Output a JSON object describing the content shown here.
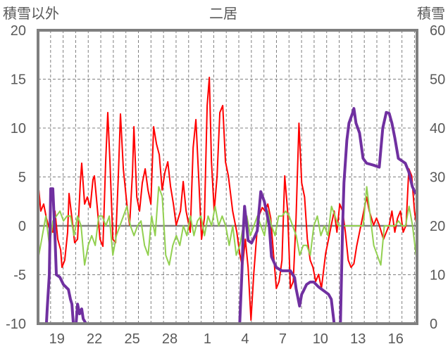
{
  "chart_data": {
    "type": "line",
    "title": "二居",
    "ylabel_left": "積雪以外",
    "ylabel_right": "積雪",
    "xlabel": "",
    "xlim": [
      0,
      30.2
    ],
    "ylim_left": [
      -10,
      20
    ],
    "ylim_right": [
      0,
      60
    ],
    "left_ticks": [
      "20",
      "15",
      "10",
      "5",
      "0",
      "-5",
      "-10"
    ],
    "left_tick_values": [
      20,
      15,
      10,
      5,
      0,
      -5,
      -10
    ],
    "right_ticks": [
      "60",
      "50",
      "40",
      "30",
      "20",
      "10",
      "0"
    ],
    "right_tick_values": [
      60,
      50,
      40,
      30,
      20,
      10,
      0
    ],
    "x_tick_labels": [
      "19",
      "22",
      "25",
      "28",
      "1",
      "4",
      "7",
      "10",
      "13",
      "16"
    ],
    "x_tick_positions": [
      1.5,
      4.5,
      7.5,
      10.5,
      13.5,
      16.5,
      19.5,
      22.5,
      25.5,
      28.5
    ],
    "grid": true,
    "colors": {
      "red": "#ff0000",
      "green": "#92d050",
      "purple": "#7030a0",
      "zero": "#7f7f7f",
      "axis": "#7f7f7f",
      "text": "#595959"
    },
    "series": [
      {
        "name": "red",
        "axis": "left",
        "color": "#ff0000",
        "points": [
          [
            0.06,
            3.67
          ],
          [
            0.22,
            1.51
          ],
          [
            0.45,
            2.23
          ],
          [
            0.67,
            0.79
          ],
          [
            0.9,
            -0.29
          ],
          [
            1.18,
            -0.65
          ],
          [
            1.35,
            1.51
          ],
          [
            1.57,
            -1.37
          ],
          [
            1.8,
            -2.45
          ],
          [
            1.91,
            -4.24
          ],
          [
            2.13,
            -3.52
          ],
          [
            2.36,
            -0.65
          ],
          [
            2.47,
            3.31
          ],
          [
            2.7,
            0.79
          ],
          [
            2.92,
            -1.73
          ],
          [
            3.15,
            -1.37
          ],
          [
            3.37,
            4.39
          ],
          [
            3.48,
            6.4
          ],
          [
            3.71,
            2.23
          ],
          [
            3.93,
            2.95
          ],
          [
            4.16,
            1.87
          ],
          [
            4.38,
            4.75
          ],
          [
            4.49,
            5.11
          ],
          [
            4.72,
            1.87
          ],
          [
            4.94,
            -1.37
          ],
          [
            5.17,
            -2.09
          ],
          [
            5.39,
            6.55
          ],
          [
            5.56,
            11.58
          ],
          [
            5.73,
            6.55
          ],
          [
            5.96,
            -1.37
          ],
          [
            6.18,
            -1.73
          ],
          [
            6.4,
            5.11
          ],
          [
            6.57,
            11.44
          ],
          [
            6.8,
            5.83
          ],
          [
            7.08,
            2.23
          ],
          [
            7.3,
            0.07
          ],
          [
            7.53,
            5.47
          ],
          [
            7.64,
            10.14
          ],
          [
            7.87,
            2.95
          ],
          [
            8.09,
            1.51
          ],
          [
            8.31,
            4.39
          ],
          [
            8.54,
            5.83
          ],
          [
            8.76,
            3.67
          ],
          [
            8.99,
            2.23
          ],
          [
            9.21,
            10.14
          ],
          [
            9.44,
            8.35
          ],
          [
            9.66,
            7.27
          ],
          [
            9.89,
            3.67
          ],
          [
            10.11,
            5.47
          ],
          [
            10.34,
            6.55
          ],
          [
            10.56,
            4.03
          ],
          [
            10.79,
            2.23
          ],
          [
            11.01,
            0.07
          ],
          [
            11.35,
            1.51
          ],
          [
            11.57,
            4.53
          ],
          [
            11.8,
            1.51
          ],
          [
            12.13,
            -0.65
          ],
          [
            12.36,
            7.99
          ],
          [
            12.58,
            10.86
          ],
          [
            12.81,
            4.75
          ],
          [
            13.03,
            -1.37
          ],
          [
            13.26,
            0.79
          ],
          [
            13.48,
            12.3
          ],
          [
            13.65,
            15.18
          ],
          [
            13.82,
            6.55
          ],
          [
            14.04,
            1.51
          ],
          [
            14.27,
            5.11
          ],
          [
            14.49,
            11.58
          ],
          [
            14.72,
            12.3
          ],
          [
            14.94,
            6.55
          ],
          [
            15.17,
            5.11
          ],
          [
            15.51,
            1.51
          ],
          [
            15.84,
            -0.65
          ],
          [
            16.07,
            -2.81
          ],
          [
            16.29,
            -4.24
          ],
          [
            16.52,
            -1.37
          ],
          [
            16.74,
            -4.24
          ],
          [
            16.97,
            -9.64
          ],
          [
            17.19,
            -4.96
          ],
          [
            17.53,
            0.79
          ],
          [
            17.87,
            1.87
          ],
          [
            18.09,
            1.51
          ],
          [
            18.31,
            2.23
          ],
          [
            18.54,
            0.79
          ],
          [
            18.76,
            -2.81
          ],
          [
            18.99,
            -6.4
          ],
          [
            19.21,
            -5.68
          ],
          [
            19.44,
            -3.52
          ],
          [
            19.66,
            5.11
          ],
          [
            19.89,
            1.51
          ],
          [
            20.11,
            -6.4
          ],
          [
            20.34,
            -5.68
          ],
          [
            20.56,
            0.79
          ],
          [
            20.79,
            10.5
          ],
          [
            21.01,
            4.39
          ],
          [
            21.24,
            2.95
          ],
          [
            21.46,
            -1.37
          ],
          [
            21.69,
            -3.52
          ],
          [
            21.91,
            -4.24
          ],
          [
            22.13,
            -5.68
          ],
          [
            22.36,
            -4.96
          ],
          [
            22.58,
            -6.4
          ],
          [
            22.92,
            -2.81
          ],
          [
            23.15,
            -1.37
          ],
          [
            23.37,
            0.07
          ],
          [
            23.6,
            1.51
          ],
          [
            23.82,
            -0.65
          ],
          [
            24.04,
            2.23
          ],
          [
            24.27,
            1.51
          ],
          [
            24.49,
            -0.65
          ],
          [
            24.72,
            -3.52
          ],
          [
            24.94,
            -4.24
          ],
          [
            25.17,
            -3.88
          ],
          [
            25.39,
            -2.09
          ],
          [
            25.62,
            -0.65
          ],
          [
            25.96,
            1.51
          ],
          [
            26.18,
            2.95
          ],
          [
            26.4,
            1.51
          ],
          [
            26.74,
            0.07
          ],
          [
            26.97,
            0.79
          ],
          [
            27.19,
            0.07
          ],
          [
            27.53,
            -1.37
          ],
          [
            27.75,
            -0.65
          ],
          [
            27.98,
            0.07
          ],
          [
            28.2,
            1.51
          ],
          [
            28.43,
            -0.65
          ],
          [
            28.65,
            0.79
          ],
          [
            28.88,
            1.51
          ],
          [
            29.1,
            -0.65
          ],
          [
            29.33,
            0.07
          ],
          [
            29.55,
            5.83
          ],
          [
            29.78,
            5.11
          ],
          [
            30.0,
            1.51
          ],
          [
            30.17,
            0.07
          ]
        ]
      },
      {
        "name": "green",
        "axis": "left",
        "color": "#92d050",
        "x_start": 0.06,
        "x_step": 0.281,
        "values": [
          -3,
          -1,
          1,
          -2,
          0.5,
          1,
          1.5,
          0.5,
          1,
          1,
          -1,
          1,
          0,
          -4,
          -2,
          -1,
          -2,
          1,
          1,
          0,
          1,
          -3,
          -1,
          0,
          1,
          2,
          0,
          -1,
          0,
          0.5,
          -2,
          -3,
          1,
          -1,
          4,
          3,
          -3,
          -4,
          -2,
          -1,
          -2,
          0,
          -1,
          1,
          -1,
          0.5,
          1,
          -1,
          1,
          0,
          2,
          0,
          1,
          0,
          -2,
          0,
          -3,
          -2,
          0,
          1,
          -1,
          0,
          1,
          0,
          -1,
          1.5,
          0,
          -1,
          1,
          1,
          1.5,
          1,
          0,
          -1,
          -3,
          -2,
          -2,
          -3,
          0,
          1,
          -1,
          0,
          -1,
          2,
          1,
          0,
          0,
          0,
          0,
          0,
          0,
          0,
          0,
          4,
          1,
          -2,
          -3,
          -4,
          0,
          0,
          0,
          0,
          0.5,
          0,
          0,
          2,
          0,
          -3
        ]
      },
      {
        "name": "purple",
        "axis": "right",
        "color": "#7030a0",
        "points": [
          [
            0,
            0
          ],
          [
            0.67,
            0
          ],
          [
            0.73,
            3
          ],
          [
            0.9,
            10
          ],
          [
            1.01,
            27.6
          ],
          [
            1.18,
            27.6
          ],
          [
            1.35,
            18
          ],
          [
            1.46,
            10
          ],
          [
            1.74,
            9.5
          ],
          [
            2.02,
            8
          ],
          [
            2.42,
            7
          ],
          [
            2.58,
            5
          ],
          [
            2.7,
            4
          ],
          [
            2.81,
            0
          ],
          [
            3.03,
            0
          ],
          [
            3.15,
            4
          ],
          [
            3.31,
            2
          ],
          [
            3.48,
            3
          ],
          [
            3.6,
            1
          ],
          [
            3.82,
            0
          ],
          [
            16.07,
            0
          ],
          [
            16.24,
            10
          ],
          [
            16.35,
            18.7
          ],
          [
            16.46,
            24
          ],
          [
            16.63,
            20
          ],
          [
            16.74,
            17
          ],
          [
            17.02,
            16.5
          ],
          [
            17.3,
            18
          ],
          [
            17.47,
            19
          ],
          [
            17.75,
            27
          ],
          [
            18.03,
            25
          ],
          [
            18.2,
            23
          ],
          [
            18.43,
            20
          ],
          [
            18.6,
            13.7
          ],
          [
            18.99,
            11.5
          ],
          [
            19.44,
            10.8
          ],
          [
            20.11,
            10.8
          ],
          [
            20.45,
            9.4
          ],
          [
            20.56,
            7.2
          ],
          [
            20.84,
            3.6
          ],
          [
            21.01,
            6
          ],
          [
            21.12,
            6.5
          ],
          [
            21.4,
            8
          ],
          [
            21.69,
            8.5
          ],
          [
            21.97,
            8.5
          ],
          [
            22.36,
            7.5
          ],
          [
            23.15,
            6
          ],
          [
            23.37,
            5
          ],
          [
            23.6,
            0
          ],
          [
            24.1,
            0
          ],
          [
            24.27,
            20
          ],
          [
            24.38,
            28.8
          ],
          [
            24.61,
            37.5
          ],
          [
            24.78,
            41
          ],
          [
            25.06,
            43
          ],
          [
            25.17,
            44
          ],
          [
            25.34,
            41
          ],
          [
            25.62,
            39
          ],
          [
            25.9,
            33.8
          ],
          [
            26.18,
            32.8
          ],
          [
            26.74,
            32.4
          ],
          [
            27.19,
            32
          ],
          [
            27.47,
            40
          ],
          [
            27.75,
            43.2
          ],
          [
            27.98,
            43
          ],
          [
            28.2,
            41
          ],
          [
            28.43,
            38
          ],
          [
            28.71,
            33.8
          ],
          [
            29.27,
            32.8
          ],
          [
            29.55,
            31
          ],
          [
            29.83,
            28
          ],
          [
            30.11,
            26.5
          ]
        ]
      }
    ]
  }
}
